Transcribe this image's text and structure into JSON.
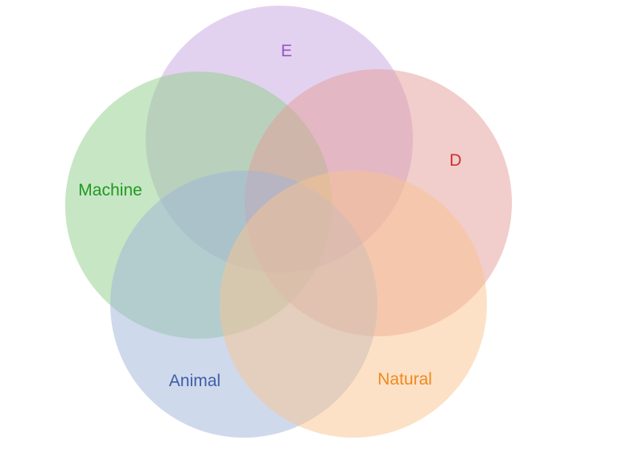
{
  "diagram": {
    "type": "venn",
    "set_count": 5,
    "sets": [
      {
        "id": "E",
        "label": "E",
        "fill": "#c7a6e0",
        "text_color": "#9a55c4"
      },
      {
        "id": "machine",
        "label": "Machine",
        "fill": "#8fce8a",
        "text_color": "#1f9a1f"
      },
      {
        "id": "D",
        "label": "D",
        "fill": "#e49c98",
        "text_color": "#d0312d"
      },
      {
        "id": "animal",
        "label": "Animal",
        "fill": "#9fb3da",
        "text_color": "#3d5ea8"
      },
      {
        "id": "natural",
        "label": "Natural",
        "fill": "#f9c390",
        "text_color": "#ee8a1e"
      }
    ]
  }
}
